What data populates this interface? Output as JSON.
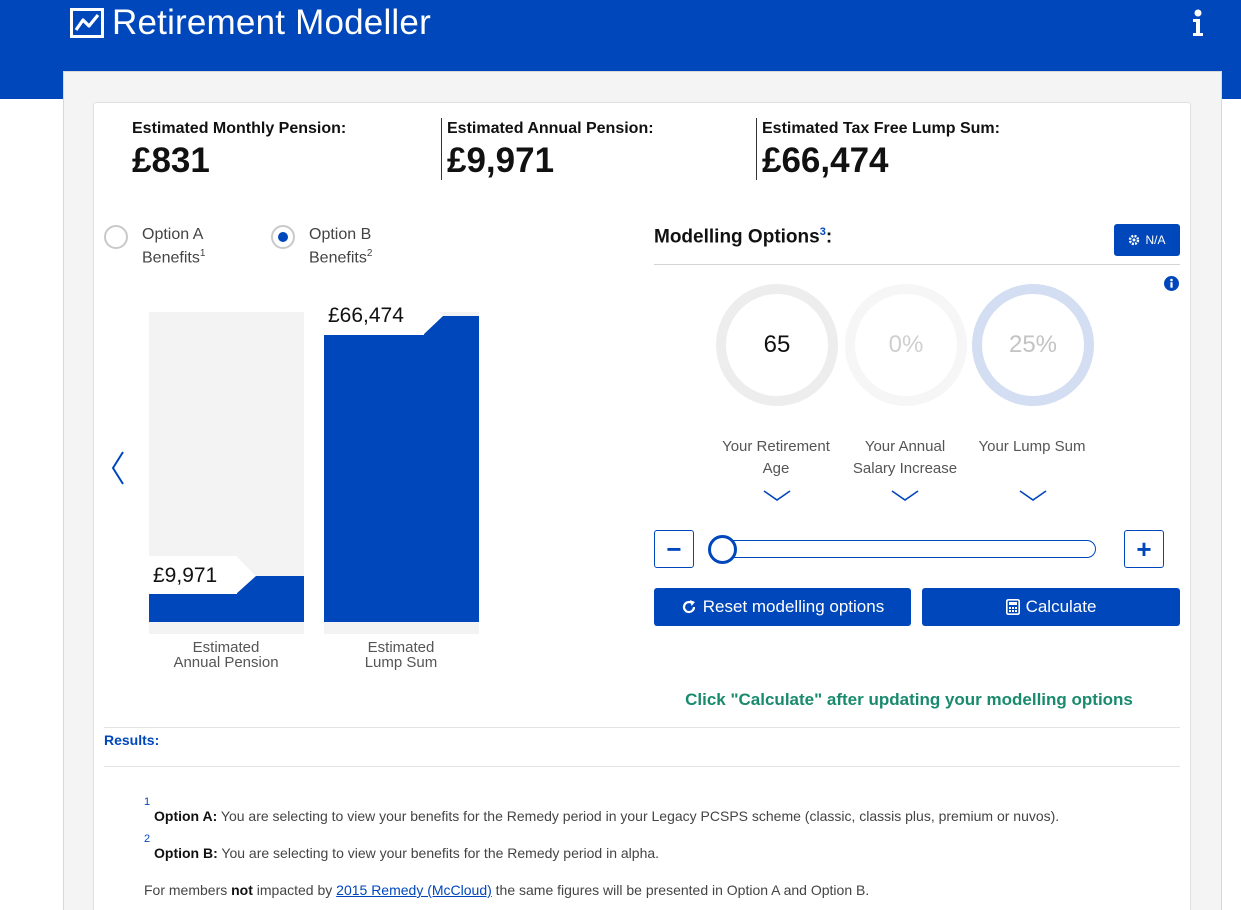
{
  "app": {
    "title": "Retirement Modeller",
    "logo_icon": "line-chart-icon",
    "info_icon": "info-icon"
  },
  "summary": [
    {
      "label": "Estimated Monthly Pension:",
      "value": "£831"
    },
    {
      "label": "Estimated Annual Pension:",
      "value": "£9,971"
    },
    {
      "label": "Estimated Tax Free Lump Sum:",
      "value": "£66,474"
    }
  ],
  "options": [
    {
      "line1": "Option A",
      "line2": "Benefits",
      "sup": "1",
      "selected": false
    },
    {
      "line1": "Option B",
      "line2": "Benefits",
      "sup": "2",
      "selected": true
    }
  ],
  "chart": {
    "bars": [
      {
        "value_label": "£9,971",
        "caption_line1": "Estimated",
        "caption_line2": "Annual Pension",
        "fill_fraction": 0.15
      },
      {
        "value_label": "£66,474",
        "caption_line1": "Estimated",
        "caption_line2": "Lump Sum",
        "fill_fraction": 1.0
      }
    ]
  },
  "modelling": {
    "title": "Modelling Options",
    "title_sup": "3",
    "title_suffix": ":",
    "na_button": "N/A",
    "rings": [
      {
        "value": "65",
        "caption_line1": "Your Retirement",
        "caption_line2": "Age",
        "active": true
      },
      {
        "value": "0%",
        "caption_line1": "Your Annual",
        "caption_line2": "Salary Increase",
        "active": false
      },
      {
        "value": "25%",
        "caption_line1": "Your Lump Sum",
        "caption_line2": "",
        "active": false
      }
    ],
    "stepper_minus": "−",
    "stepper_plus": "+",
    "slider_value_fraction": 0.0,
    "reset_button": "Reset modelling options",
    "calculate_button": "Calculate",
    "hint": "Click \"Calculate\" after updating your modelling options"
  },
  "results_heading": "Results:",
  "footnotes": [
    {
      "num": "1",
      "bold": "Option A:",
      "text": " You are selecting to view your benefits for the Remedy period in your Legacy PCSPS scheme (classic, classis plus, premium or nuvos)."
    },
    {
      "num": "2",
      "bold": "Option B:",
      "text": " You are selecting to view your benefits for the Remedy period in alpha."
    }
  ],
  "note": {
    "pre": "For members ",
    "bold": "not",
    "mid": " impacted by ",
    "link": "2015 Remedy (McCloud)",
    "post": " the same figures will be presented in Option A and Option B."
  },
  "colors": {
    "brand": "#0047bb",
    "hint": "#1a8a6e",
    "bar_bg": "#f3f3f3"
  }
}
